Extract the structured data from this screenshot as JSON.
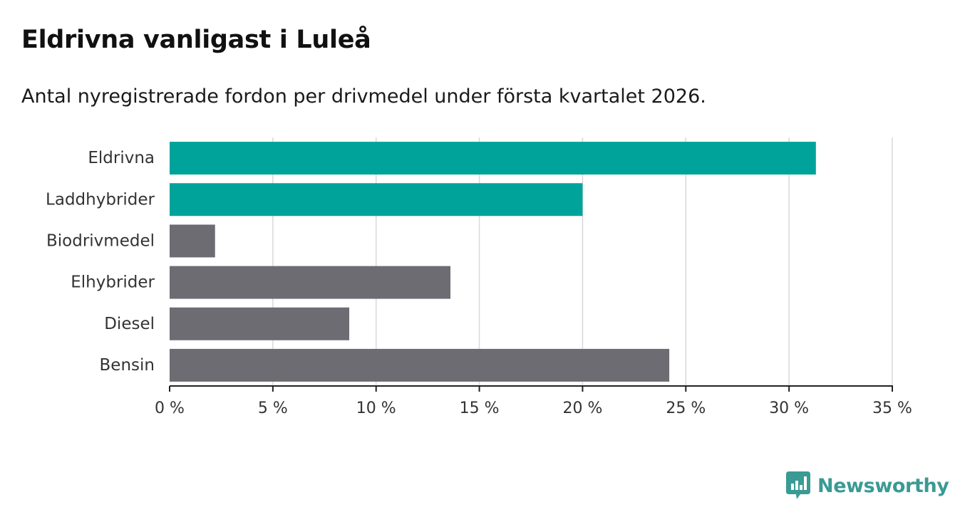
{
  "title": "Eldrivna vanligast i Luleå",
  "subtitle": "Antal nyregistrerade fordon per drivmedel under första kvartalet 2026.",
  "brand": {
    "name": "Newsworthy",
    "icon": "newsworthy-logo-icon",
    "color": "#3a9a94"
  },
  "chart_data": {
    "type": "bar",
    "orientation": "horizontal",
    "title": "Eldrivna vanligast i Luleå",
    "subtitle": "Antal nyregistrerade fordon per drivmedel under första kvartalet 2026.",
    "xlabel": "",
    "ylabel": "",
    "categories": [
      "Eldrivna",
      "Laddhybrider",
      "Biodrivmedel",
      "Elhybrider",
      "Diesel",
      "Bensin"
    ],
    "values": [
      31.3,
      20.0,
      2.2,
      13.6,
      8.7,
      24.2
    ],
    "colors": [
      "#00a39a",
      "#00a39a",
      "#6d6c72",
      "#6d6c72",
      "#6d6c72",
      "#6d6c72"
    ],
    "xlim": [
      0,
      35
    ],
    "xticks": [
      0,
      5,
      10,
      15,
      20,
      25,
      30,
      35
    ],
    "xtick_labels": [
      "0 %",
      "5 %",
      "10 %",
      "15 %",
      "20 %",
      "25 %",
      "30 %",
      "35 %"
    ],
    "grid": true
  }
}
